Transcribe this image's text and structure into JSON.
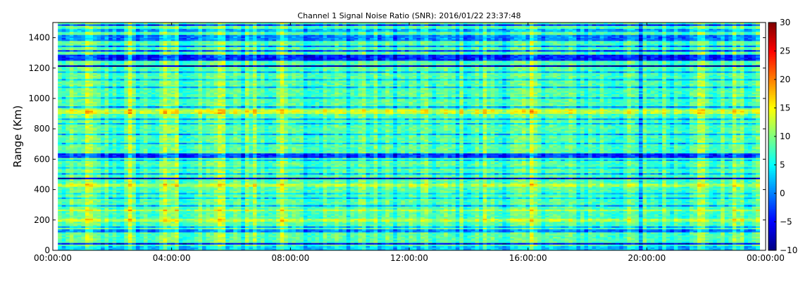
{
  "chart_data": {
    "type": "heatmap",
    "title": "Channel 1 Signal Noise Ratio (SNR): 2016/01/22 23:37:48",
    "xlabel": "",
    "ylabel": "Range (Km)",
    "x_ticks": [
      "00:00:00",
      "04:00:00",
      "08:00:00",
      "12:00:00",
      "16:00:00",
      "20:00:00",
      "00:00:00"
    ],
    "x_range_hours": [
      0,
      24
    ],
    "y_ticks": [
      0,
      200,
      400,
      600,
      800,
      1000,
      1200,
      1400
    ],
    "ylim": [
      0,
      1500
    ],
    "colorbar": {
      "colormap": "jet",
      "range": [
        -10,
        30
      ],
      "ticks": [
        -10,
        -5,
        0,
        5,
        10,
        15,
        20,
        25,
        30
      ]
    },
    "grid": false,
    "data_extent_hours": [
      0.17,
      23.8
    ],
    "base_snr": 8,
    "range_rows": [
      {
        "range": [
          0,
          30
        ],
        "snr": 3
      },
      {
        "range": [
          45,
          55
        ],
        "snr": -6
      },
      {
        "range": [
          120,
          140
        ],
        "snr": 0
      },
      {
        "range": [
          150,
          165
        ],
        "snr": 2
      },
      {
        "range": [
          190,
          210
        ],
        "snr": 12
      },
      {
        "range": [
          218,
          225
        ],
        "snr": -9
      },
      {
        "range": [
          228,
          234
        ],
        "snr": -10
      },
      {
        "range": [
          260,
          270
        ],
        "snr": 12
      },
      {
        "range": [
          290,
          300
        ],
        "snr": 2
      },
      {
        "range": [
          340,
          350
        ],
        "snr": 3
      },
      {
        "range": [
          370,
          380
        ],
        "snr": 4
      },
      {
        "range": [
          420,
          440
        ],
        "snr": 12
      },
      {
        "range": [
          470,
          476
        ],
        "snr": -9
      },
      {
        "range": [
          500,
          510
        ],
        "snr": 2
      },
      {
        "range": [
          540,
          550
        ],
        "snr": 4
      },
      {
        "range": [
          590,
          600
        ],
        "snr": 3
      },
      {
        "range": [
          615,
          640
        ],
        "snr": -3
      },
      {
        "range": [
          700,
          710
        ],
        "snr": 3
      },
      {
        "range": [
          760,
          770
        ],
        "snr": 2
      },
      {
        "range": [
          798,
          804
        ],
        "snr": -10
      },
      {
        "range": [
          830,
          840
        ],
        "snr": 3
      },
      {
        "range": [
          860,
          870
        ],
        "snr": 2
      },
      {
        "range": [
          900,
          930
        ],
        "snr": 13
      },
      {
        "range": [
          940,
          950
        ],
        "snr": 1
      },
      {
        "range": [
          1000,
          1010
        ],
        "snr": 3
      },
      {
        "range": [
          1070,
          1080
        ],
        "snr": 2
      },
      {
        "range": [
          1120,
          1130
        ],
        "snr": 3
      },
      {
        "range": [
          1170,
          1180
        ],
        "snr": 2
      },
      {
        "range": [
          1210,
          1225
        ],
        "snr": -9
      },
      {
        "range": [
          1250,
          1290
        ],
        "snr": -4
      },
      {
        "range": [
          1310,
          1320
        ],
        "snr": -3
      },
      {
        "range": [
          1340,
          1350
        ],
        "snr": 0
      },
      {
        "range": [
          1380,
          1420
        ],
        "snr": 0
      },
      {
        "range": [
          1440,
          1460
        ],
        "snr": 2
      },
      {
        "range": [
          1480,
          1490
        ],
        "snr": -4
      }
    ],
    "time_bands": [
      {
        "hours": [
          1.0,
          1.4
        ],
        "delta": 3
      },
      {
        "hours": [
          2.5,
          2.6
        ],
        "delta": 4
      },
      {
        "hours": [
          3.7,
          4.3
        ],
        "delta": 3
      },
      {
        "hours": [
          5.3,
          5.8
        ],
        "delta": 3
      },
      {
        "hours": [
          6.5,
          6.8
        ],
        "delta": 3
      },
      {
        "hours": [
          7.5,
          8.3
        ],
        "delta": 3
      },
      {
        "hours": [
          10.3,
          10.6
        ],
        "delta": 2
      },
      {
        "hours": [
          14.5,
          14.7
        ],
        "delta": 2
      },
      {
        "hours": [
          16.0,
          16.4
        ],
        "delta": 4
      },
      {
        "hours": [
          19.7,
          19.85
        ],
        "delta": -8
      },
      {
        "hours": [
          21.5,
          22.0
        ],
        "delta": 3
      },
      {
        "hours": [
          22.7,
          23.2
        ],
        "delta": 2
      }
    ],
    "noise_amplitude": 6
  }
}
